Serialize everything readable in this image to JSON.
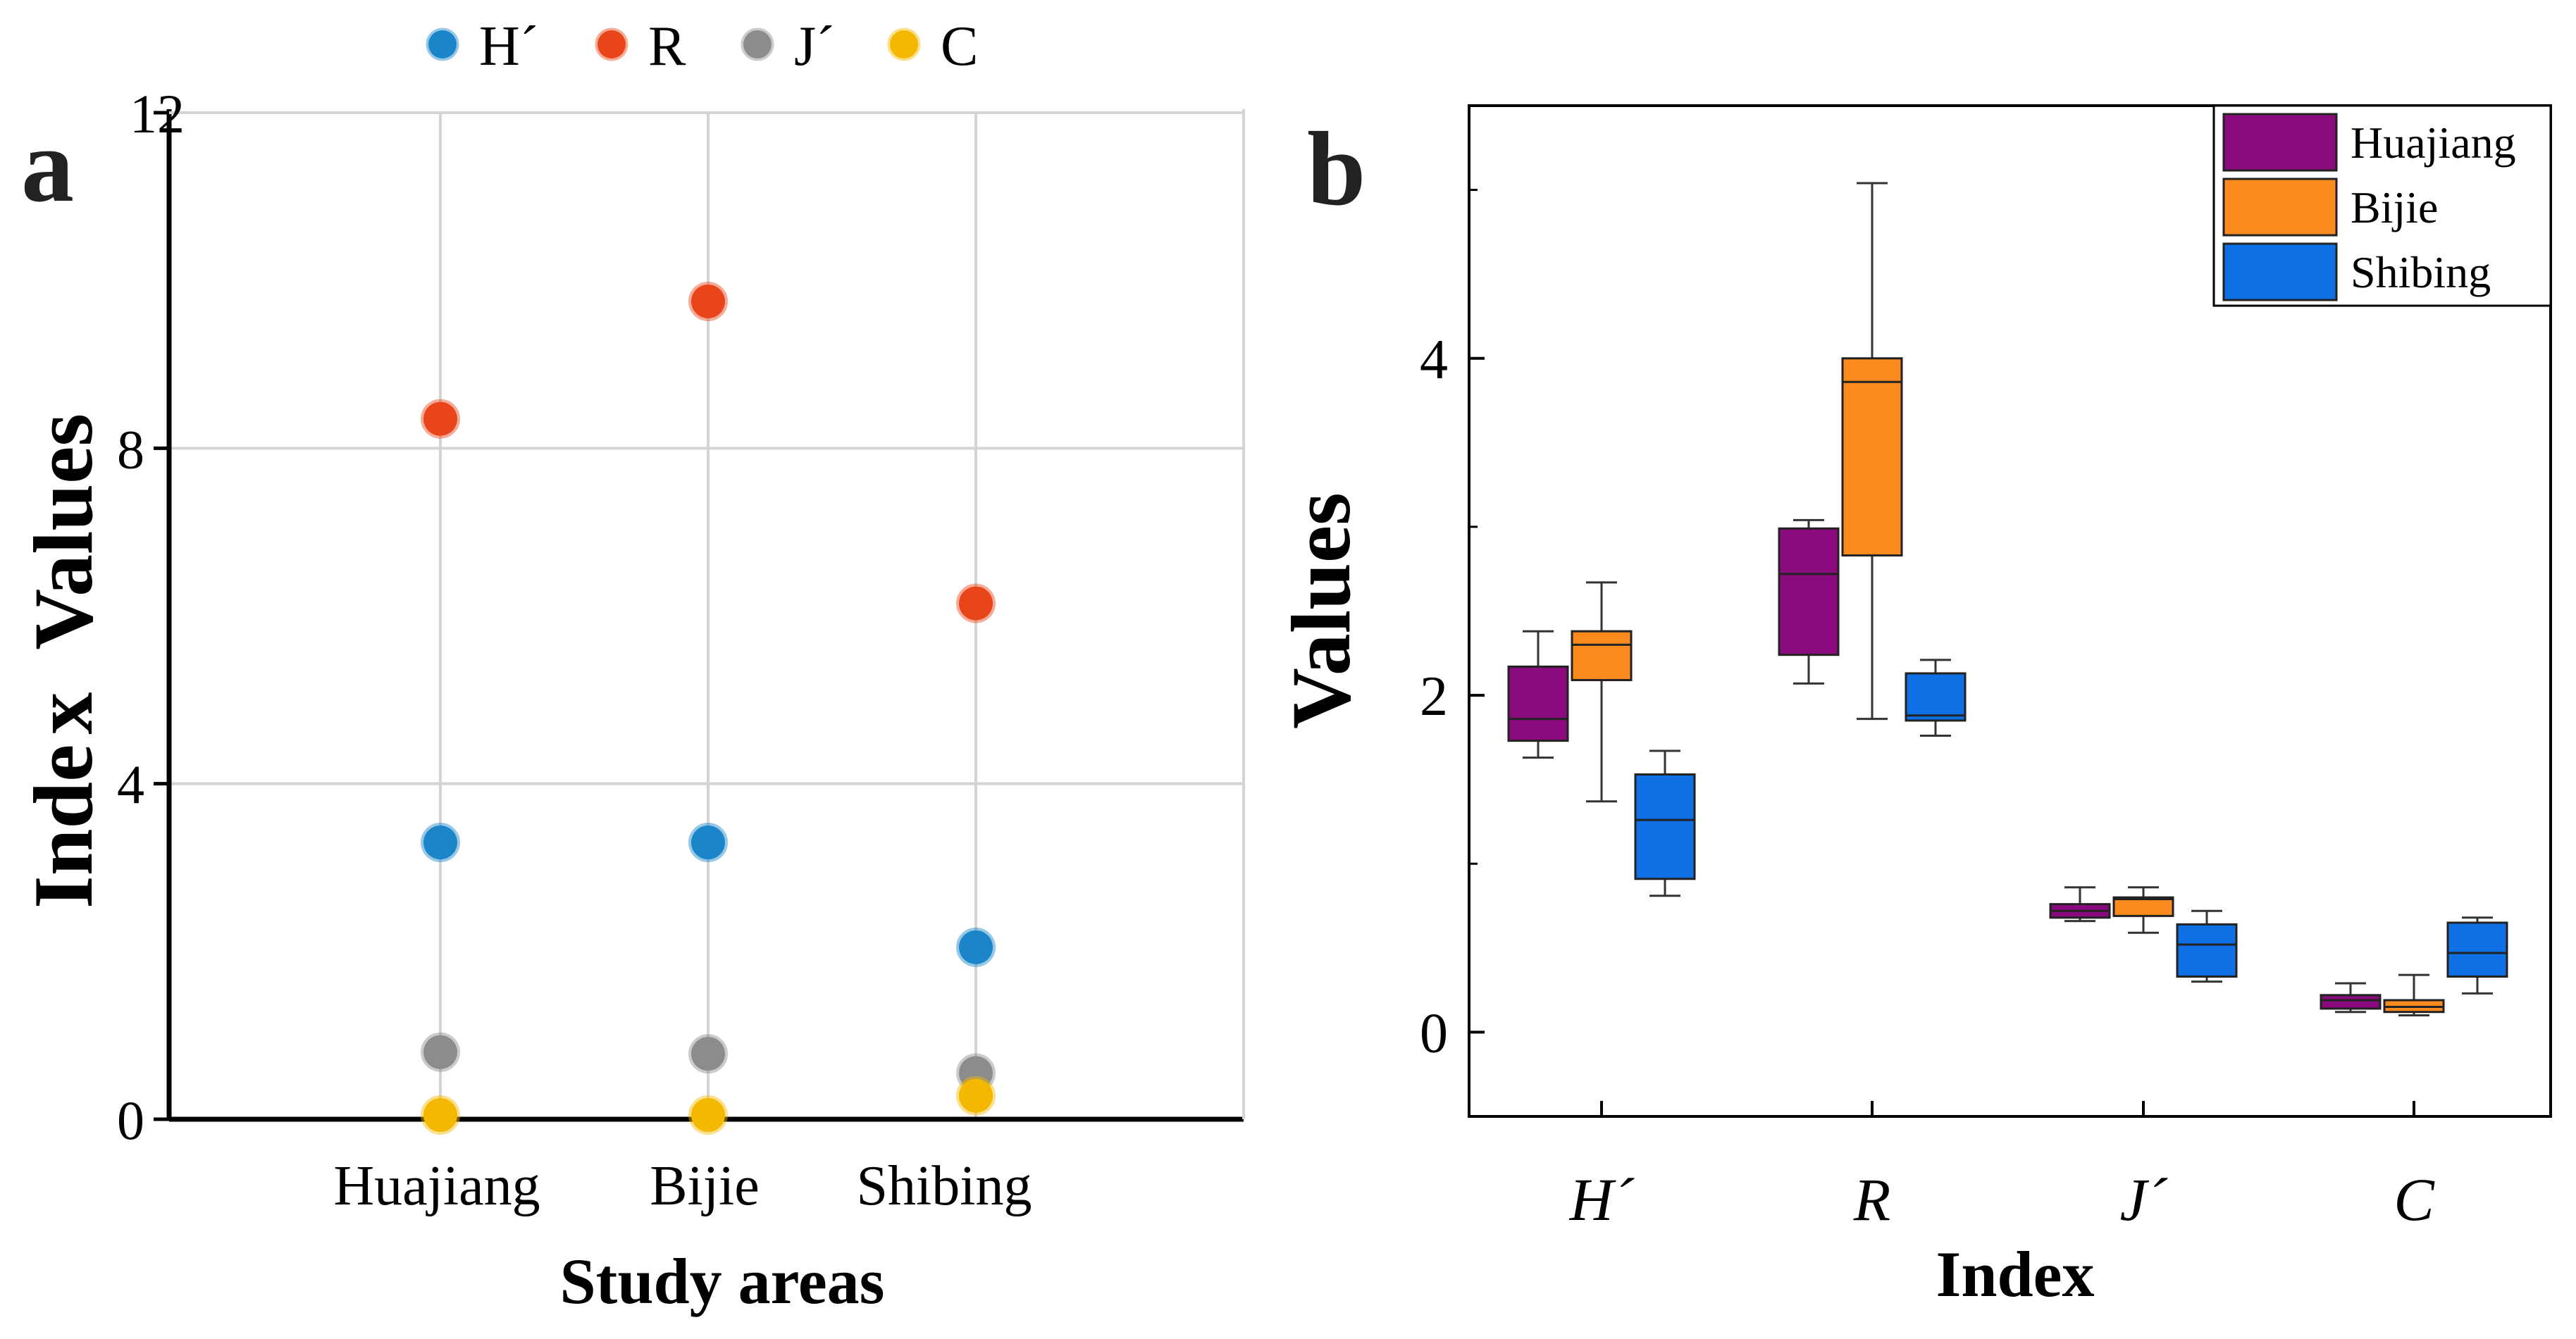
{
  "chart_data": [
    {
      "panel": "a",
      "type": "scatter",
      "panel_label": "a",
      "xlabel": "Study areas",
      "ylabel": "Index Values",
      "ylabel_parts": [
        "Inde",
        "x",
        "Values"
      ],
      "categories": [
        "Huajiang",
        "Bijie",
        "Shibing"
      ],
      "ylim": [
        0,
        12
      ],
      "yticks": [
        "0",
        "4",
        "8",
        "12"
      ],
      "ytick_values": [
        0,
        4,
        8,
        12
      ],
      "grid": true,
      "legend_position": "top",
      "series": [
        {
          "name": "H´",
          "color": "#1b85c8",
          "values": [
            3.3,
            3.3,
            2.05
          ]
        },
        {
          "name": "R",
          "color": "#e8461a",
          "values": [
            8.35,
            9.75,
            6.15
          ]
        },
        {
          "name": "J´",
          "color": "#8c8c8c",
          "values": [
            0.8,
            0.78,
            0.55
          ]
        },
        {
          "name": "C",
          "color": "#f5b800",
          "values": [
            0.05,
            0.05,
            0.28
          ]
        }
      ]
    },
    {
      "panel": "b",
      "type": "box",
      "panel_label": "b",
      "xlabel": "Index",
      "ylabel": "Values",
      "categories": [
        "H´",
        "R",
        "J´",
        "C"
      ],
      "ylim": [
        -0.5,
        5.5
      ],
      "yticks": [
        "0",
        "2",
        "4"
      ],
      "ytick_values": [
        0,
        2,
        4
      ],
      "legend_position": "top-right",
      "series": [
        {
          "name": "Huajiang",
          "color": "#8b0a7e",
          "boxes": [
            {
              "min": 1.63,
              "q1": 1.73,
              "median": 1.86,
              "q3": 2.17,
              "max": 2.38
            },
            {
              "min": 2.07,
              "q1": 2.24,
              "median": 2.72,
              "q3": 2.99,
              "max": 3.04
            },
            {
              "min": 0.66,
              "q1": 0.68,
              "median": 0.72,
              "q3": 0.76,
              "max": 0.86
            },
            {
              "min": 0.12,
              "q1": 0.14,
              "median": 0.19,
              "q3": 0.22,
              "max": 0.29
            }
          ]
        },
        {
          "name": "Bijie",
          "color": "#fb8a1f",
          "boxes": [
            {
              "min": 1.37,
              "q1": 2.09,
              "median": 2.3,
              "q3": 2.38,
              "max": 2.67
            },
            {
              "min": 1.86,
              "q1": 2.83,
              "median": 3.86,
              "q3": 4.0,
              "max": 5.04
            },
            {
              "min": 0.59,
              "q1": 0.69,
              "median": 0.79,
              "q3": 0.8,
              "max": 0.86
            },
            {
              "min": 0.1,
              "q1": 0.12,
              "median": 0.15,
              "q3": 0.19,
              "max": 0.34
            }
          ]
        },
        {
          "name": "Shibing",
          "color": "#0e70e2",
          "boxes": [
            {
              "min": 0.81,
              "q1": 0.91,
              "median": 1.26,
              "q3": 1.53,
              "max": 1.67
            },
            {
              "min": 1.76,
              "q1": 1.85,
              "median": 1.88,
              "q3": 2.13,
              "max": 2.21
            },
            {
              "min": 0.3,
              "q1": 0.33,
              "median": 0.52,
              "q3": 0.64,
              "max": 0.72
            },
            {
              "min": 0.23,
              "q1": 0.33,
              "median": 0.47,
              "q3": 0.65,
              "max": 0.68
            }
          ]
        }
      ]
    }
  ]
}
